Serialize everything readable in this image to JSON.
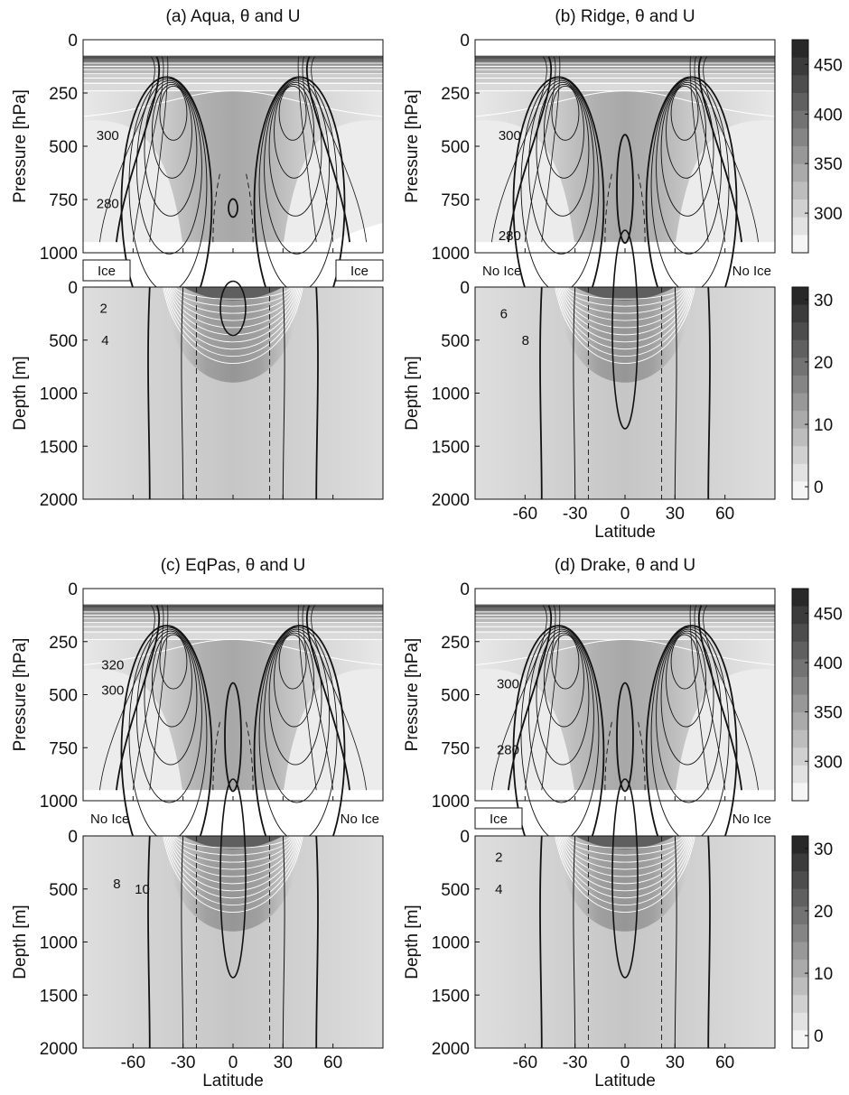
{
  "figure": {
    "panels": [
      {
        "title": "(a) Aqua, θ and U",
        "atmosphere": {
          "ylabel": "Pressure [hPa]",
          "yticks": [
            "0",
            "250",
            "500",
            "750",
            "1000"
          ],
          "contour_labels": [
            {
              "text": "300",
              "lat": -82,
              "p": 470
            },
            {
              "text": "280",
              "lat": -82,
              "p": 790
            }
          ]
        },
        "ice": {
          "left": "Ice",
          "left_boxed": true,
          "right": "Ice",
          "right_boxed": true
        },
        "ocean": {
          "ylabel": "Depth [m]",
          "yticks": [
            "0",
            "500",
            "1000",
            "1500",
            "2000"
          ],
          "contour_labels": [
            {
              "text": "2",
              "lat": -80,
              "d": 200
            },
            {
              "text": "4",
              "lat": -79,
              "d": 500
            }
          ]
        },
        "xlabel": "",
        "xticks": []
      },
      {
        "title": "(b) Ridge, θ and U",
        "atmosphere": {
          "ylabel": "Pressure [hPa]",
          "yticks": [
            "0",
            "250",
            "500",
            "750",
            "1000"
          ],
          "contour_labels": [
            {
              "text": "300",
              "lat": -76,
              "p": 470
            },
            {
              "text": "280",
              "lat": -76,
              "p": 940
            }
          ]
        },
        "ice": {
          "left": "No Ice",
          "left_boxed": false,
          "right": "No Ice",
          "right_boxed": false
        },
        "ocean": {
          "ylabel": "Depth [m]",
          "yticks": [
            "0",
            "500",
            "1000",
            "1500",
            "2000"
          ],
          "contour_labels": [
            {
              "text": "6",
              "lat": -75,
              "d": 250
            },
            {
              "text": "8",
              "lat": -62,
              "d": 500
            }
          ]
        },
        "xlabel": "Latitude",
        "xticks": [
          "-60",
          "-30",
          "0",
          "30",
          "60"
        ]
      },
      {
        "title": "(c) EqPas, θ and U",
        "atmosphere": {
          "ylabel": "Pressure [hPa]",
          "yticks": [
            "0",
            "250",
            "500",
            "750",
            "1000"
          ],
          "contour_labels": [
            {
              "text": "320",
              "lat": -79,
              "p": 380
            },
            {
              "text": "300",
              "lat": -79,
              "p": 500
            }
          ]
        },
        "ice": {
          "left": "No Ice",
          "left_boxed": false,
          "right": "No Ice",
          "right_boxed": false
        },
        "ocean": {
          "ylabel": "Depth [m]",
          "yticks": [
            "0",
            "500",
            "1000",
            "1500",
            "2000"
          ],
          "contour_labels": [
            {
              "text": "8",
              "lat": -72,
              "d": 450
            },
            {
              "text": "10",
              "lat": -59,
              "d": 500
            }
          ]
        },
        "xlabel": "Latitude",
        "xticks": [
          "-60",
          "-30",
          "0",
          "30",
          "60"
        ]
      },
      {
        "title": "(d) Drake, θ and U",
        "atmosphere": {
          "ylabel": "Pressure [hPa]",
          "yticks": [
            "0",
            "250",
            "500",
            "750",
            "1000"
          ],
          "contour_labels": [
            {
              "text": "300",
              "lat": -77,
              "p": 470
            },
            {
              "text": "280",
              "lat": -77,
              "p": 780
            }
          ]
        },
        "ice": {
          "left": "Ice",
          "left_boxed": true,
          "right": "No Ice",
          "right_boxed": false
        },
        "ocean": {
          "ylabel": "Depth [m]",
          "yticks": [
            "0",
            "500",
            "1000",
            "1500",
            "2000"
          ],
          "contour_labels": [
            {
              "text": "2",
              "lat": -78,
              "d": 200
            },
            {
              "text": "4",
              "lat": -78,
              "d": 500
            }
          ]
        },
        "xlabel": "Latitude",
        "xticks": [
          "-60",
          "-30",
          "0",
          "30",
          "60"
        ]
      }
    ],
    "colorbars": {
      "atmosphere": {
        "ticks": [
          "300",
          "350",
          "400",
          "450"
        ],
        "range": [
          260,
          475
        ]
      },
      "ocean": {
        "ticks": [
          "0",
          "10",
          "20",
          "30"
        ],
        "range": [
          -2,
          32
        ]
      }
    }
  },
  "chart_data": [
    {
      "type": "heatmap",
      "title": "(a) Aqua, θ and U",
      "xlabel": "",
      "ylabel": "Pressure [hPa]",
      "xlim": [
        -90,
        90
      ],
      "ylim": [
        1000,
        0
      ],
      "field": "potential temperature θ (K) shaded, zonal wind U contours",
      "labeled_isotherms": [
        300,
        280
      ]
    },
    {
      "type": "heatmap",
      "title": "",
      "xlabel": "",
      "ylabel": "Depth [m]",
      "xlim": [
        -90,
        90
      ],
      "ylim": [
        2000,
        0
      ],
      "field": "ocean temperature shaded, zonal current contours",
      "labeled_isotherms": [
        2,
        4
      ],
      "sea_ice": "Ice at both poles"
    },
    {
      "type": "heatmap",
      "title": "(b) Ridge, θ and U",
      "xlabel": "",
      "ylabel": "Pressure [hPa]",
      "xlim": [
        -90,
        90
      ],
      "ylim": [
        1000,
        0
      ],
      "labeled_isotherms": [
        300,
        280
      ]
    },
    {
      "type": "heatmap",
      "title": "",
      "xlabel": "Latitude",
      "ylabel": "Depth [m]",
      "xlim": [
        -90,
        90
      ],
      "ylim": [
        2000,
        0
      ],
      "labeled_isotherms": [
        6,
        8
      ],
      "sea_ice": "No Ice"
    },
    {
      "type": "heatmap",
      "title": "(c) EqPas, θ and U",
      "xlabel": "",
      "ylabel": "Pressure [hPa]",
      "xlim": [
        -90,
        90
      ],
      "ylim": [
        1000,
        0
      ],
      "labeled_isotherms": [
        320,
        300
      ]
    },
    {
      "type": "heatmap",
      "title": "",
      "xlabel": "Latitude",
      "ylabel": "Depth [m]",
      "xlim": [
        -90,
        90
      ],
      "ylim": [
        2000,
        0
      ],
      "labeled_isotherms": [
        8,
        10
      ],
      "sea_ice": "No Ice"
    },
    {
      "type": "heatmap",
      "title": "(d) Drake, θ and U",
      "xlabel": "",
      "ylabel": "Pressure [hPa]",
      "xlim": [
        -90,
        90
      ],
      "ylim": [
        1000,
        0
      ],
      "labeled_isotherms": [
        300,
        280
      ]
    },
    {
      "type": "heatmap",
      "title": "",
      "xlabel": "Latitude",
      "ylabel": "Depth [m]",
      "xlim": [
        -90,
        90
      ],
      "ylim": [
        2000,
        0
      ],
      "labeled_isotherms": [
        2,
        4
      ],
      "sea_ice": "Ice in south, No Ice in north"
    }
  ]
}
